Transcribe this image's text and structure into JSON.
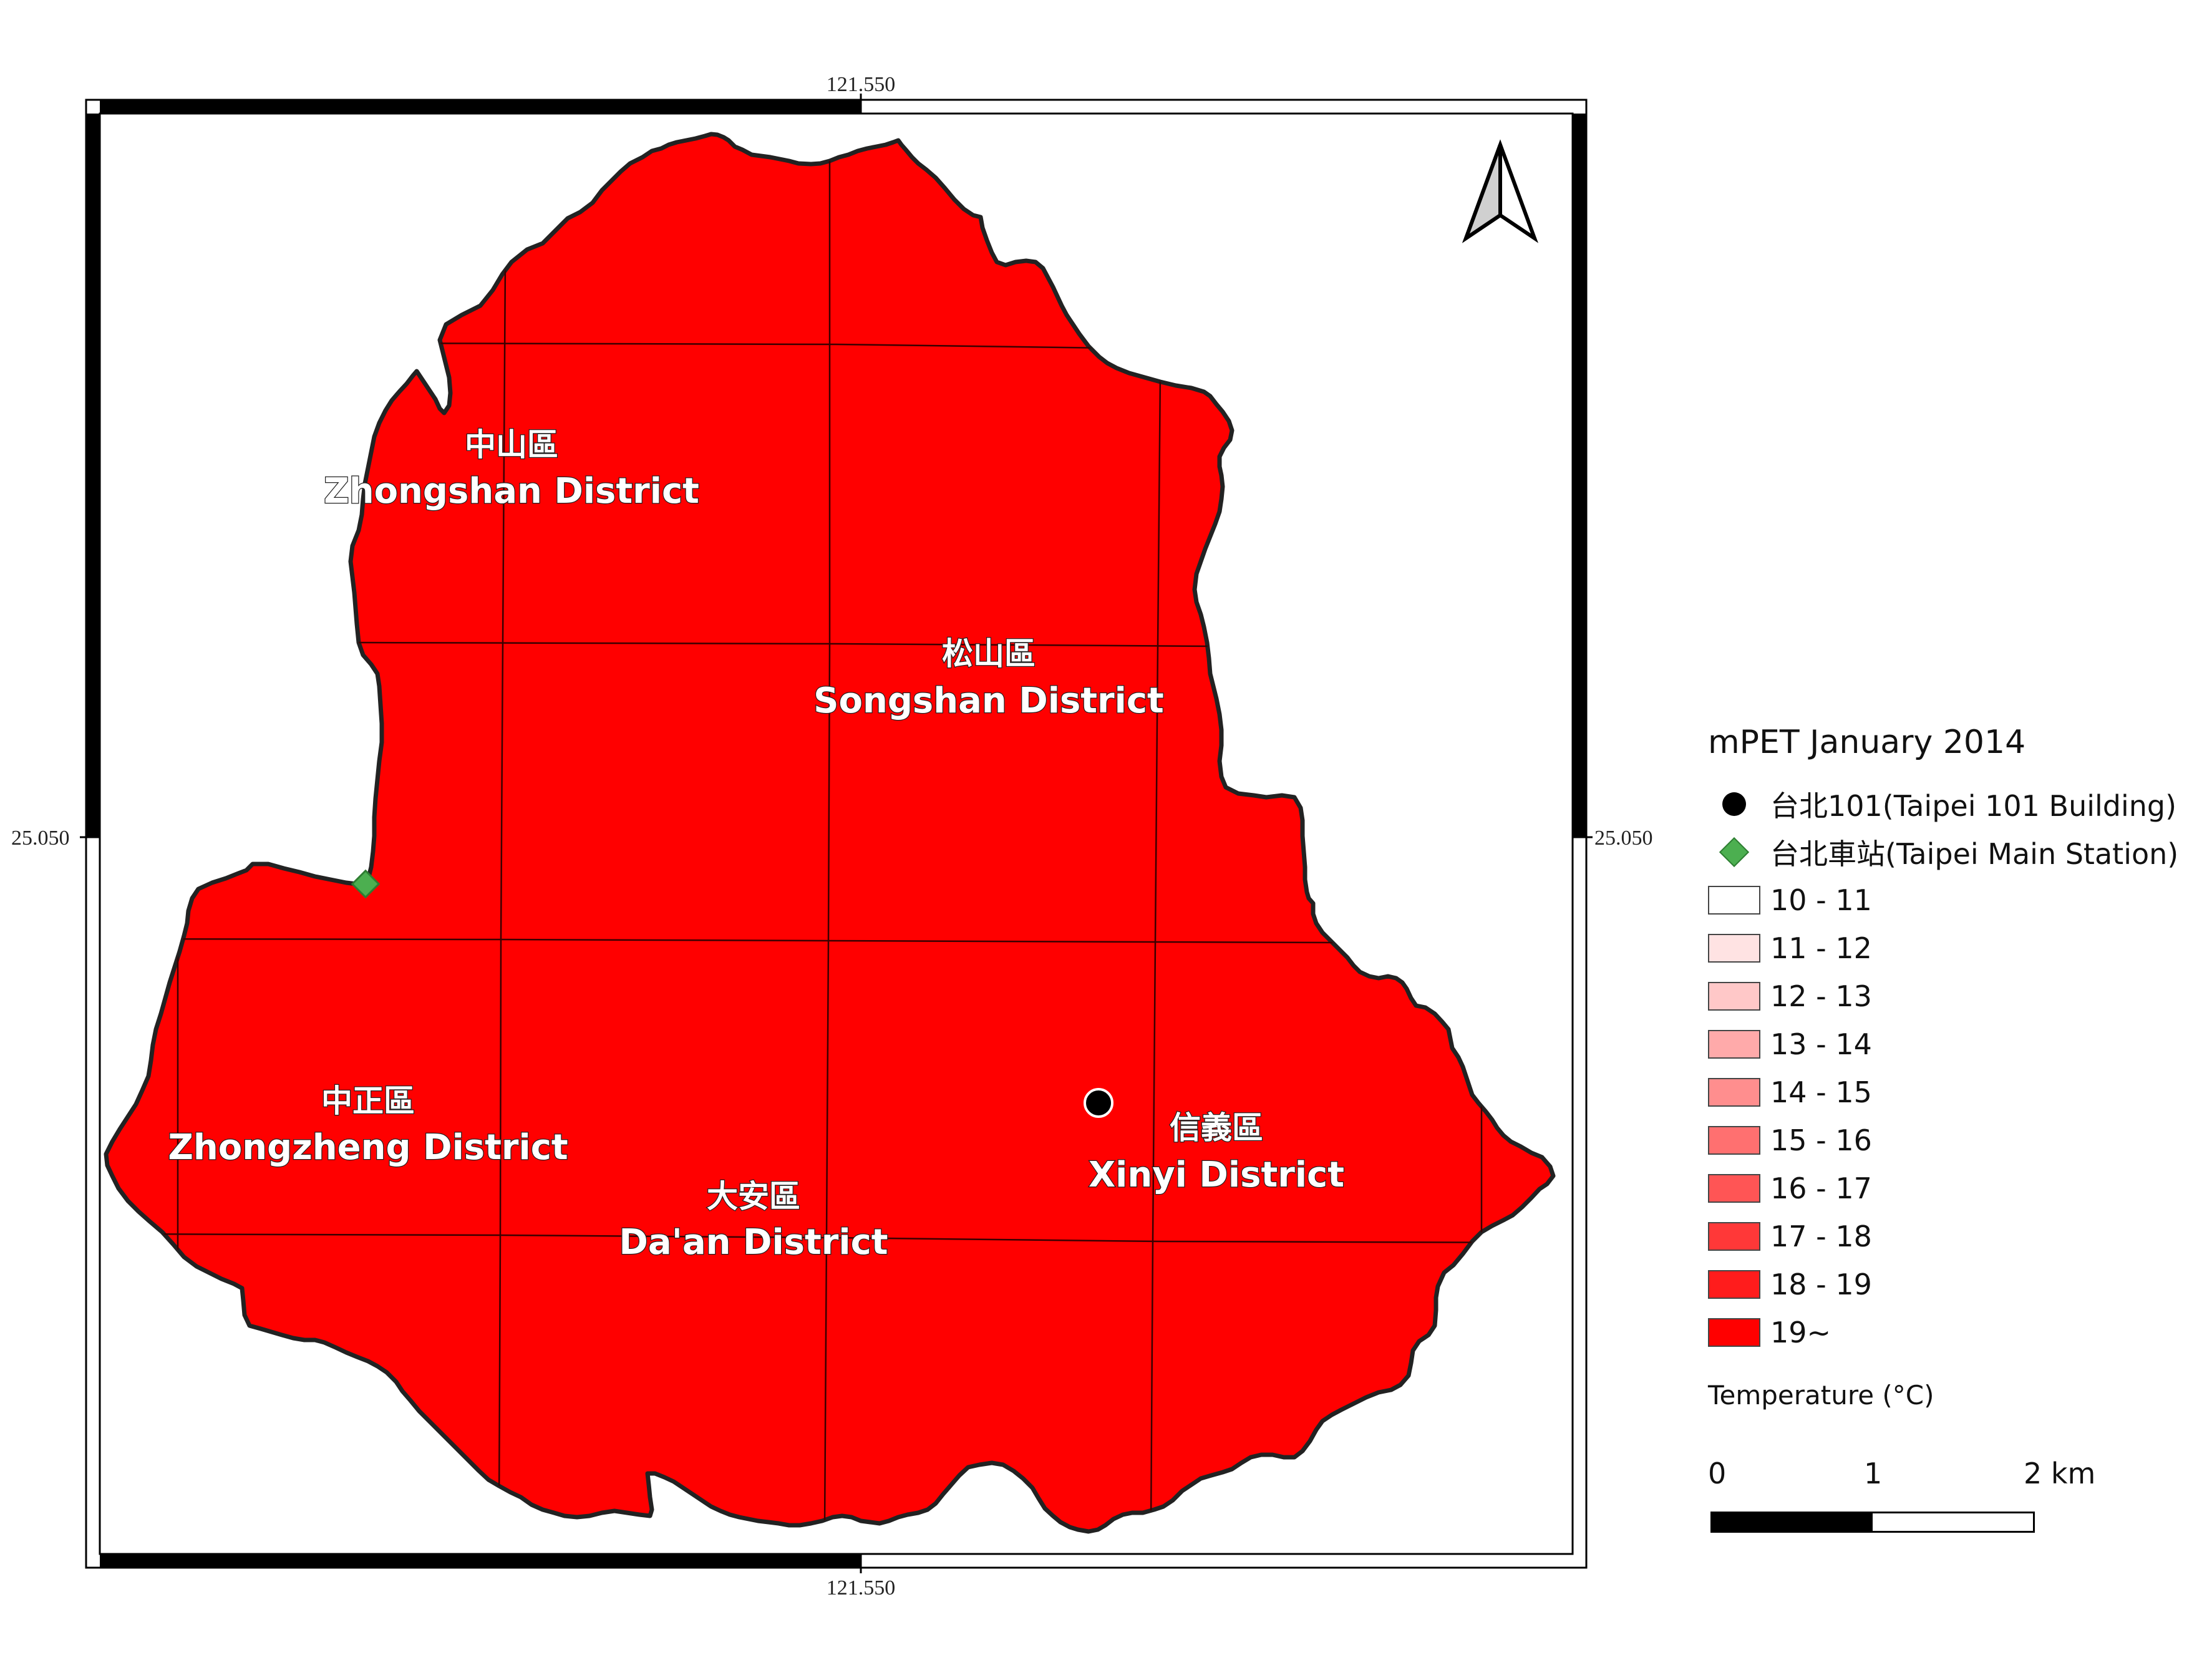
{
  "map": {
    "coord_top": "121.550",
    "coord_bottom": "121.550",
    "coord_left": "25.050",
    "coord_right": "25.050",
    "fill_color": "#ff0000",
    "outline_color": "#222222",
    "north_arrow_icon": "north-arrow-icon",
    "districts": [
      {
        "zh": "中山區",
        "en": "Zhongshan District"
      },
      {
        "zh": "松山區",
        "en": "Songshan District"
      },
      {
        "zh": "中正區",
        "en": "Zhongzheng District"
      },
      {
        "zh": "大安區",
        "en": "Da'an District"
      },
      {
        "zh": "信義區",
        "en": "Xinyi District"
      }
    ]
  },
  "legend": {
    "title": "mPET January 2014",
    "points": [
      {
        "label": "台北101(Taipei 101 Building)",
        "icon": "black-circle-icon",
        "color": "#000000"
      },
      {
        "label": "台北車站(Taipei Main Station)",
        "icon": "green-diamond-icon",
        "color": "#4caf50"
      }
    ],
    "classes": [
      {
        "label": "10 - 11",
        "color": "#ffffff"
      },
      {
        "label": "11 - 12",
        "color": "#ffe3e3"
      },
      {
        "label": "12 - 13",
        "color": "#ffc8c8"
      },
      {
        "label": "13 - 14",
        "color": "#ffaaaa"
      },
      {
        "label": "14 - 15",
        "color": "#ff8e8e"
      },
      {
        "label": "15 - 16",
        "color": "#ff7070"
      },
      {
        "label": "16 - 17",
        "color": "#ff5555"
      },
      {
        "label": "17 - 18",
        "color": "#ff3838"
      },
      {
        "label": "18 - 19",
        "color": "#ff1c1c"
      },
      {
        "label": "19~",
        "color": "#ff0000"
      }
    ],
    "units": "Temperature (°C)"
  },
  "scalebar": {
    "labels": [
      "0",
      "1",
      "2 km"
    ]
  }
}
